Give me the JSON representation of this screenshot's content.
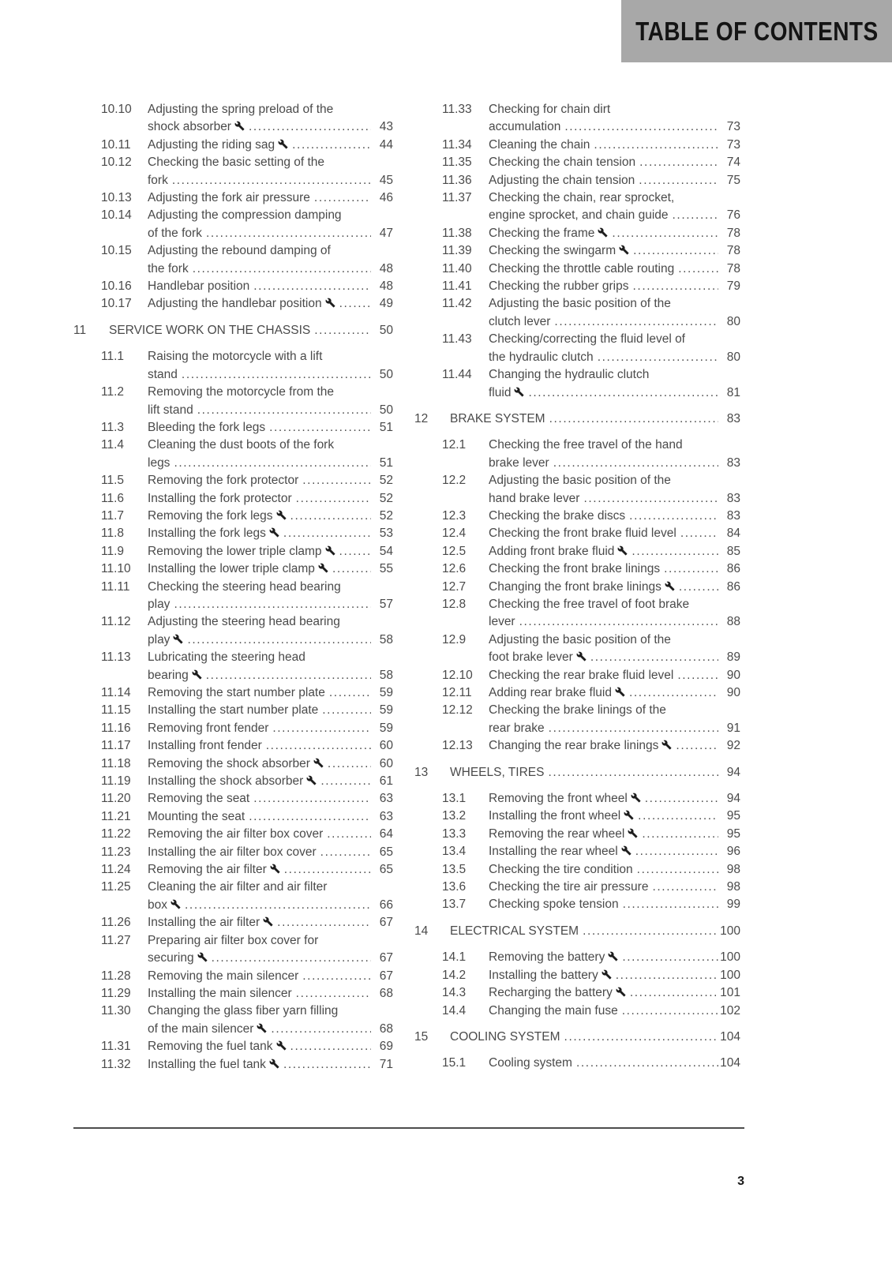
{
  "header": {
    "title": "TABLE OF CONTENTS"
  },
  "footer": {
    "page_number": "3"
  },
  "icons": {
    "wrench": "wrench-icon"
  },
  "colors": {
    "header_bg": "#a8a8a8",
    "header_text": "#141414",
    "body_text": "#4a4a4a",
    "rule": "#4d4d4d"
  },
  "columns": [
    {
      "blocks": [
        {
          "type": "entries",
          "entries": [
            {
              "num": "10.10",
              "lines": [
                "Adjusting the spring preload of the",
                "shock absorber"
              ],
              "wrench": true,
              "page": "43"
            },
            {
              "num": "10.11",
              "lines": [
                "Adjusting the riding sag"
              ],
              "wrench": true,
              "page": "44"
            },
            {
              "num": "10.12",
              "lines": [
                "Checking the basic setting of the",
                "fork"
              ],
              "wrench": false,
              "page": "45"
            },
            {
              "num": "10.13",
              "lines": [
                "Adjusting the fork air pressure"
              ],
              "wrench": false,
              "page": "46"
            },
            {
              "num": "10.14",
              "lines": [
                "Adjusting the compression damping",
                "of the fork"
              ],
              "wrench": false,
              "page": "47"
            },
            {
              "num": "10.15",
              "lines": [
                "Adjusting the rebound damping of",
                "the fork"
              ],
              "wrench": false,
              "page": "48"
            },
            {
              "num": "10.16",
              "lines": [
                "Handlebar position"
              ],
              "wrench": false,
              "page": "48"
            },
            {
              "num": "10.17",
              "lines": [
                "Adjusting the handlebar position"
              ],
              "wrench": true,
              "page": "49"
            }
          ]
        },
        {
          "type": "section",
          "num": "11",
          "title": "SERVICE WORK ON THE CHASSIS",
          "page": "50"
        },
        {
          "type": "entries",
          "entries": [
            {
              "num": "11.1",
              "lines": [
                "Raising the motorcycle with a lift",
                "stand"
              ],
              "wrench": false,
              "page": "50"
            },
            {
              "num": "11.2",
              "lines": [
                "Removing the motorcycle from the",
                "lift stand"
              ],
              "wrench": false,
              "page": "50"
            },
            {
              "num": "11.3",
              "lines": [
                "Bleeding the fork legs"
              ],
              "wrench": false,
              "page": "51"
            },
            {
              "num": "11.4",
              "lines": [
                "Cleaning the dust boots of the fork",
                "legs"
              ],
              "wrench": false,
              "page": "51"
            },
            {
              "num": "11.5",
              "lines": [
                "Removing the fork protector"
              ],
              "wrench": false,
              "page": "52"
            },
            {
              "num": "11.6",
              "lines": [
                "Installing the fork protector"
              ],
              "wrench": false,
              "page": "52"
            },
            {
              "num": "11.7",
              "lines": [
                "Removing the fork legs"
              ],
              "wrench": true,
              "page": "52"
            },
            {
              "num": "11.8",
              "lines": [
                "Installing the fork legs"
              ],
              "wrench": true,
              "page": "53"
            },
            {
              "num": "11.9",
              "lines": [
                "Removing the lower triple clamp"
              ],
              "wrench": true,
              "page": "54"
            },
            {
              "num": "11.10",
              "lines": [
                "Installing the lower triple clamp"
              ],
              "wrench": true,
              "page": "55"
            },
            {
              "num": "11.11",
              "lines": [
                "Checking the steering head bearing",
                "play"
              ],
              "wrench": false,
              "page": "57"
            },
            {
              "num": "11.12",
              "lines": [
                "Adjusting the steering head bearing",
                "play"
              ],
              "wrench": true,
              "page": "58"
            },
            {
              "num": "11.13",
              "lines": [
                "Lubricating the steering head",
                "bearing"
              ],
              "wrench": true,
              "page": "58"
            },
            {
              "num": "11.14",
              "lines": [
                "Removing the start number plate"
              ],
              "wrench": false,
              "page": "59"
            },
            {
              "num": "11.15",
              "lines": [
                "Installing the start number plate"
              ],
              "wrench": false,
              "page": "59"
            },
            {
              "num": "11.16",
              "lines": [
                "Removing front fender"
              ],
              "wrench": false,
              "page": "59"
            },
            {
              "num": "11.17",
              "lines": [
                "Installing front fender"
              ],
              "wrench": false,
              "page": "60"
            },
            {
              "num": "11.18",
              "lines": [
                "Removing the shock absorber"
              ],
              "wrench": true,
              "page": "60"
            },
            {
              "num": "11.19",
              "lines": [
                "Installing the shock absorber"
              ],
              "wrench": true,
              "page": "61"
            },
            {
              "num": "11.20",
              "lines": [
                "Removing the seat"
              ],
              "wrench": false,
              "page": "63"
            },
            {
              "num": "11.21",
              "lines": [
                "Mounting the seat"
              ],
              "wrench": false,
              "page": "63"
            },
            {
              "num": "11.22",
              "lines": [
                "Removing the air filter box cover"
              ],
              "wrench": false,
              "page": "64"
            },
            {
              "num": "11.23",
              "lines": [
                "Installing the air filter box cover"
              ],
              "wrench": false,
              "page": "65"
            },
            {
              "num": "11.24",
              "lines": [
                "Removing the air filter"
              ],
              "wrench": true,
              "page": "65"
            },
            {
              "num": "11.25",
              "lines": [
                "Cleaning the air filter and air filter",
                "box"
              ],
              "wrench": true,
              "page": "66"
            },
            {
              "num": "11.26",
              "lines": [
                "Installing the air filter"
              ],
              "wrench": true,
              "page": "67"
            },
            {
              "num": "11.27",
              "lines": [
                "Preparing air filter box cover for",
                "securing"
              ],
              "wrench": true,
              "page": "67"
            },
            {
              "num": "11.28",
              "lines": [
                "Removing the main silencer"
              ],
              "wrench": false,
              "page": "67"
            },
            {
              "num": "11.29",
              "lines": [
                "Installing the main silencer"
              ],
              "wrench": false,
              "page": "68"
            },
            {
              "num": "11.30",
              "lines": [
                "Changing the glass fiber yarn filling",
                "of the main silencer"
              ],
              "wrench": true,
              "page": "68"
            },
            {
              "num": "11.31",
              "lines": [
                "Removing the fuel tank"
              ],
              "wrench": true,
              "page": "69"
            },
            {
              "num": "11.32",
              "lines": [
                "Installing the fuel tank"
              ],
              "wrench": true,
              "page": "71"
            }
          ]
        }
      ]
    },
    {
      "blocks": [
        {
          "type": "entries",
          "entries": [
            {
              "num": "11.33",
              "lines": [
                "Checking for chain dirt",
                "accumulation"
              ],
              "wrench": false,
              "page": "73"
            },
            {
              "num": "11.34",
              "lines": [
                "Cleaning the chain"
              ],
              "wrench": false,
              "page": "73"
            },
            {
              "num": "11.35",
              "lines": [
                "Checking the chain tension"
              ],
              "wrench": false,
              "page": "74"
            },
            {
              "num": "11.36",
              "lines": [
                "Adjusting the chain tension"
              ],
              "wrench": false,
              "page": "75"
            },
            {
              "num": "11.37",
              "lines": [
                "Checking the chain, rear sprocket,",
                "engine sprocket, and chain guide"
              ],
              "wrench": false,
              "page": "76"
            },
            {
              "num": "11.38",
              "lines": [
                "Checking the frame"
              ],
              "wrench": true,
              "page": "78"
            },
            {
              "num": "11.39",
              "lines": [
                "Checking the swingarm"
              ],
              "wrench": true,
              "page": "78"
            },
            {
              "num": "11.40",
              "lines": [
                "Checking the throttle cable routing"
              ],
              "wrench": false,
              "page": "78"
            },
            {
              "num": "11.41",
              "lines": [
                "Checking the rubber grips"
              ],
              "wrench": false,
              "page": "79"
            },
            {
              "num": "11.42",
              "lines": [
                "Adjusting the basic position of the",
                "clutch lever"
              ],
              "wrench": false,
              "page": "80"
            },
            {
              "num": "11.43",
              "lines": [
                "Checking/correcting the fluid level of",
                "the hydraulic clutch"
              ],
              "wrench": false,
              "page": "80"
            },
            {
              "num": "11.44",
              "lines": [
                "Changing the hydraulic clutch",
                "fluid"
              ],
              "wrench": true,
              "page": "81"
            }
          ]
        },
        {
          "type": "section",
          "num": "12",
          "title": "BRAKE SYSTEM",
          "page": "83"
        },
        {
          "type": "entries",
          "entries": [
            {
              "num": "12.1",
              "lines": [
                "Checking the free travel of the hand",
                "brake lever"
              ],
              "wrench": false,
              "page": "83"
            },
            {
              "num": "12.2",
              "lines": [
                "Adjusting the basic position of the",
                "hand brake lever"
              ],
              "wrench": false,
              "page": "83"
            },
            {
              "num": "12.3",
              "lines": [
                "Checking the brake discs"
              ],
              "wrench": false,
              "page": "83"
            },
            {
              "num": "12.4",
              "lines": [
                "Checking the front brake fluid level"
              ],
              "wrench": false,
              "page": "84"
            },
            {
              "num": "12.5",
              "lines": [
                "Adding front brake fluid"
              ],
              "wrench": true,
              "page": "85"
            },
            {
              "num": "12.6",
              "lines": [
                "Checking the front brake linings"
              ],
              "wrench": false,
              "page": "86"
            },
            {
              "num": "12.7",
              "lines": [
                "Changing the front brake linings"
              ],
              "wrench": true,
              "page": "86"
            },
            {
              "num": "12.8",
              "lines": [
                "Checking the free travel of foot brake",
                "lever"
              ],
              "wrench": false,
              "page": "88"
            },
            {
              "num": "12.9",
              "lines": [
                "Adjusting the basic position of the",
                "foot brake lever"
              ],
              "wrench": true,
              "page": "89"
            },
            {
              "num": "12.10",
              "lines": [
                "Checking the rear brake fluid level"
              ],
              "wrench": false,
              "page": "90"
            },
            {
              "num": "12.11",
              "lines": [
                "Adding rear brake fluid"
              ],
              "wrench": true,
              "page": "90"
            },
            {
              "num": "12.12",
              "lines": [
                "Checking the brake linings of the",
                "rear brake"
              ],
              "wrench": false,
              "page": "91"
            },
            {
              "num": "12.13",
              "lines": [
                "Changing the rear brake linings"
              ],
              "wrench": true,
              "page": "92"
            }
          ]
        },
        {
          "type": "section",
          "num": "13",
          "title": "WHEELS, TIRES",
          "page": "94"
        },
        {
          "type": "entries",
          "entries": [
            {
              "num": "13.1",
              "lines": [
                "Removing the front wheel"
              ],
              "wrench": true,
              "page": "94"
            },
            {
              "num": "13.2",
              "lines": [
                "Installing the front wheel"
              ],
              "wrench": true,
              "page": "95"
            },
            {
              "num": "13.3",
              "lines": [
                "Removing the rear wheel"
              ],
              "wrench": true,
              "page": "95"
            },
            {
              "num": "13.4",
              "lines": [
                "Installing the rear wheel"
              ],
              "wrench": true,
              "page": "96"
            },
            {
              "num": "13.5",
              "lines": [
                "Checking the tire condition"
              ],
              "wrench": false,
              "page": "98"
            },
            {
              "num": "13.6",
              "lines": [
                "Checking the tire air pressure"
              ],
              "wrench": false,
              "page": "98"
            },
            {
              "num": "13.7",
              "lines": [
                "Checking spoke tension"
              ],
              "wrench": false,
              "page": "99"
            }
          ]
        },
        {
          "type": "section",
          "num": "14",
          "title": "ELECTRICAL SYSTEM",
          "page": "100"
        },
        {
          "type": "entries",
          "entries": [
            {
              "num": "14.1",
              "lines": [
                "Removing the battery"
              ],
              "wrench": true,
              "page": "100"
            },
            {
              "num": "14.2",
              "lines": [
                "Installing the battery"
              ],
              "wrench": true,
              "page": "100"
            },
            {
              "num": "14.3",
              "lines": [
                "Recharging the battery"
              ],
              "wrench": true,
              "page": "101"
            },
            {
              "num": "14.4",
              "lines": [
                "Changing the main fuse"
              ],
              "wrench": false,
              "page": "102"
            }
          ]
        },
        {
          "type": "section",
          "num": "15",
          "title": "COOLING SYSTEM",
          "page": "104"
        },
        {
          "type": "entries",
          "entries": [
            {
              "num": "15.1",
              "lines": [
                "Cooling system"
              ],
              "wrench": false,
              "page": "104"
            }
          ]
        }
      ]
    }
  ]
}
